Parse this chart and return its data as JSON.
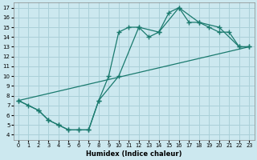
{
  "xlabel": "Humidex (Indice chaleur)",
  "background_color": "#cce8ef",
  "grid_color": "#aad0d8",
  "line_color": "#1a7a6e",
  "xlim": [
    -0.5,
    23.5
  ],
  "ylim": [
    3.5,
    17.5
  ],
  "xticks": [
    0,
    1,
    2,
    3,
    4,
    5,
    6,
    7,
    8,
    9,
    10,
    11,
    12,
    13,
    14,
    15,
    16,
    17,
    18,
    19,
    20,
    21,
    22,
    23
  ],
  "yticks": [
    4,
    5,
    6,
    7,
    8,
    9,
    10,
    11,
    12,
    13,
    14,
    15,
    16,
    17
  ],
  "line1_x": [
    0,
    1,
    2,
    3,
    4,
    5,
    6,
    7,
    8,
    9,
    10,
    11,
    12,
    13,
    14,
    15,
    16,
    17,
    18,
    19,
    20,
    21,
    22,
    23
  ],
  "line1_y": [
    7.5,
    7.0,
    6.5,
    5.5,
    5.0,
    4.5,
    4.5,
    4.5,
    7.5,
    10.0,
    14.5,
    15.0,
    15.0,
    14.0,
    14.5,
    16.5,
    17.0,
    15.5,
    15.5,
    15.0,
    14.5,
    14.5,
    13.0,
    13.0
  ],
  "line2_x": [
    0,
    2,
    3,
    4,
    5,
    6,
    7,
    8,
    10,
    12,
    14,
    16,
    18,
    20,
    22,
    23
  ],
  "line2_y": [
    7.5,
    6.5,
    5.5,
    5.0,
    4.5,
    4.5,
    4.5,
    7.5,
    10.0,
    15.0,
    14.5,
    17.0,
    15.5,
    15.0,
    13.0,
    13.0
  ],
  "line3_x": [
    0,
    23
  ],
  "line3_y": [
    7.5,
    13.0
  ]
}
